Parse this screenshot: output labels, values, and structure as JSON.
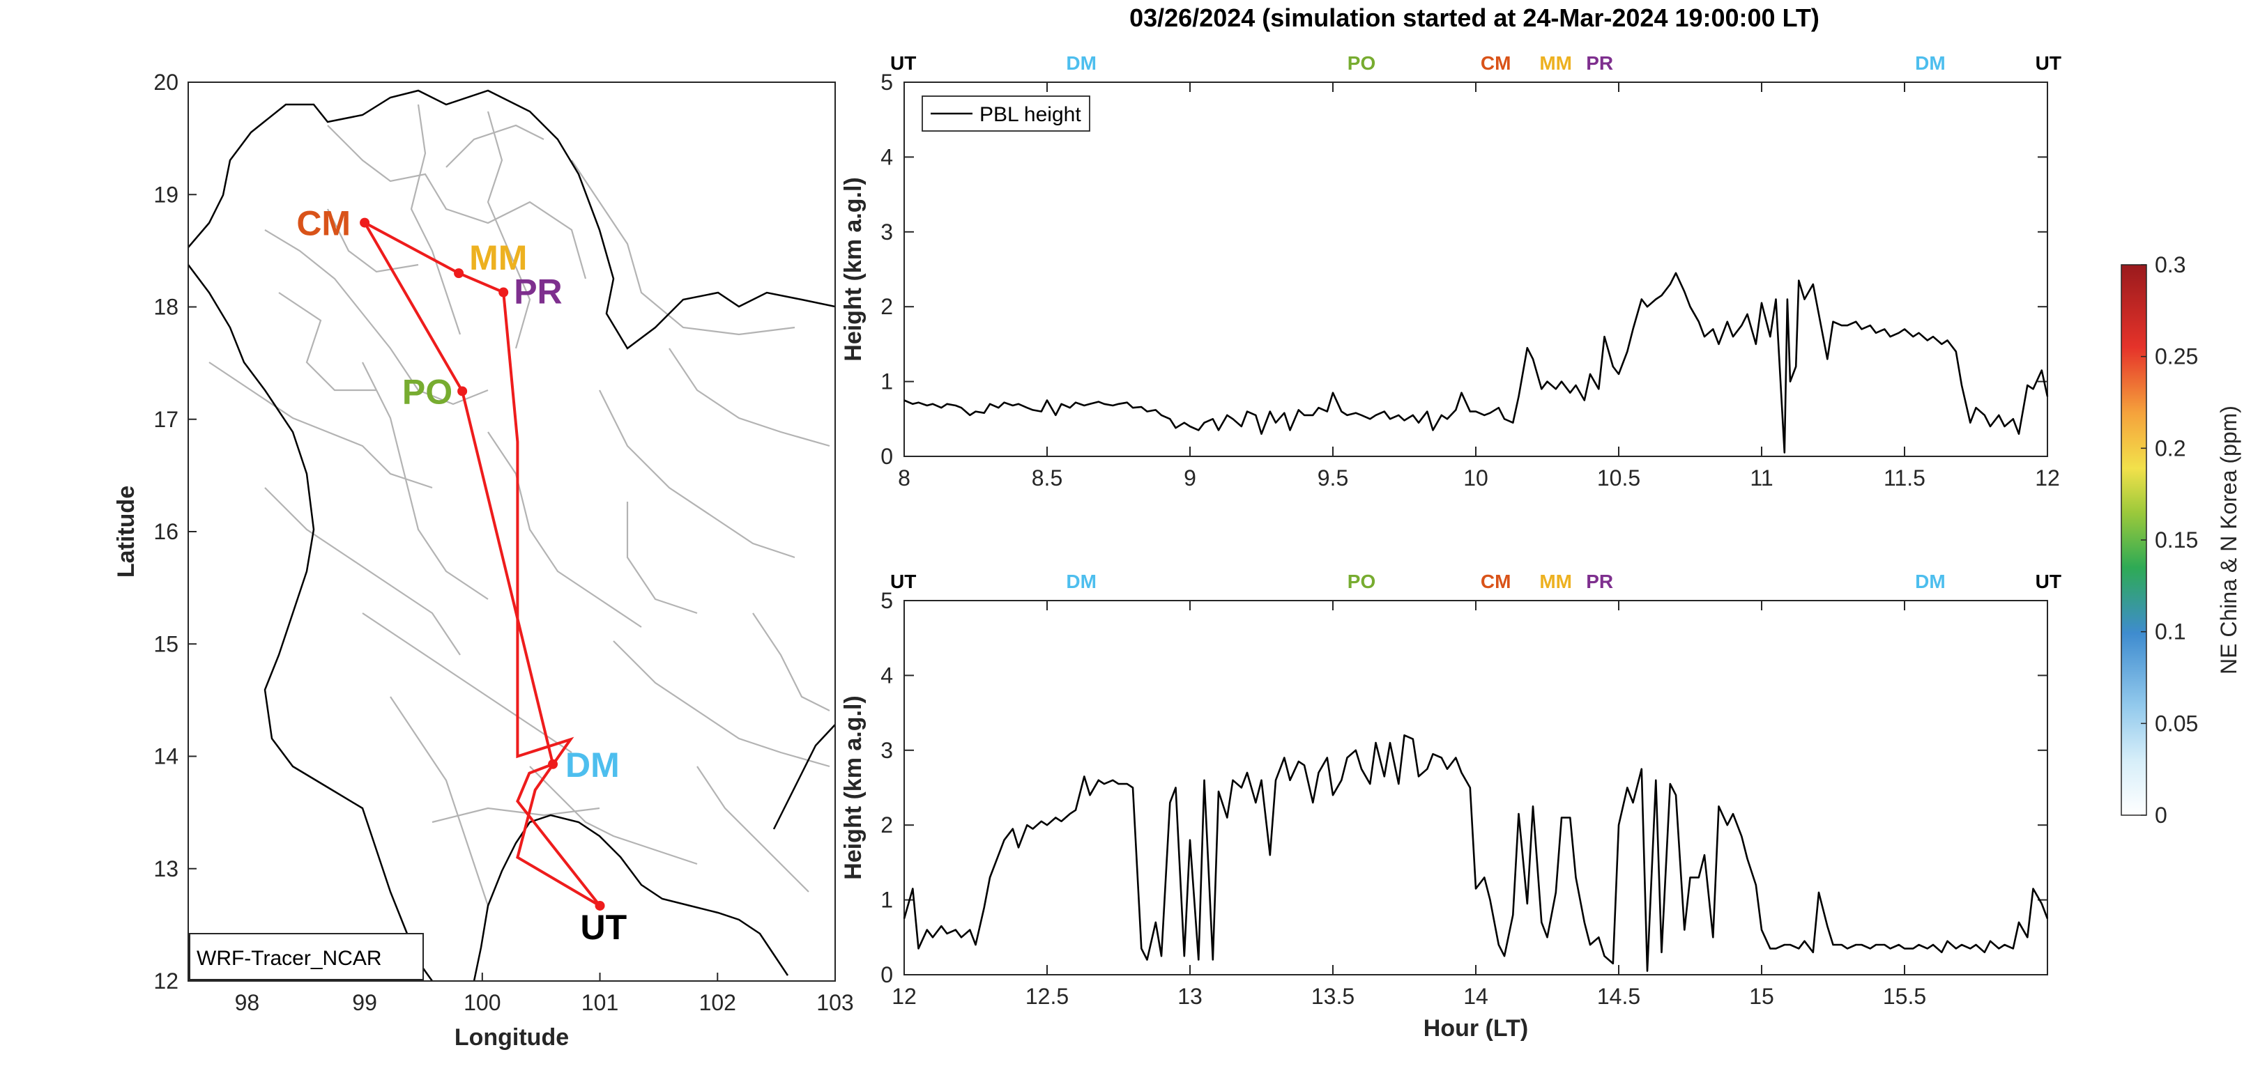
{
  "title": "03/26/2024 (simulation started at 24-Mar-2024 19:00:00 LT)",
  "colors": {
    "route": "#ee1c1c",
    "UT": "#000000",
    "DM": "#4dbeee",
    "PO": "#77ac30",
    "CM": "#d95319",
    "MM": "#edb120",
    "PR": "#7e2f8e"
  },
  "map": {
    "label": "WRF-Tracer_NCAR",
    "xlabel": "Longitude",
    "ylabel": "Latitude",
    "xlim": [
      97.5,
      103
    ],
    "ylim": [
      12,
      20
    ],
    "xticks": [
      98,
      99,
      100,
      101,
      102,
      103
    ],
    "yticks": [
      12,
      13,
      14,
      15,
      16,
      17,
      18,
      19,
      20
    ],
    "stations": [
      {
        "code": "CM",
        "lon": 99.0,
        "lat": 18.75
      },
      {
        "code": "MM",
        "lon": 99.8,
        "lat": 18.3
      },
      {
        "code": "PR",
        "lon": 100.18,
        "lat": 18.13
      },
      {
        "code": "PO",
        "lon": 99.83,
        "lat": 17.25
      },
      {
        "code": "DM",
        "lon": 100.6,
        "lat": 13.93
      },
      {
        "code": "UT",
        "lon": 101.0,
        "lat": 12.67
      }
    ]
  },
  "chart_data": [
    {
      "type": "line",
      "title": "03/26/2024 (simulation started at 24-Mar-2024 19:00:00 LT)",
      "xlabel": "",
      "ylabel": "Height (km a.g.l)",
      "xlim": [
        8,
        12
      ],
      "ylim": [
        0,
        5
      ],
      "xticks": [
        8,
        8.5,
        9,
        9.5,
        10,
        10.5,
        11,
        11.5,
        12
      ],
      "yticks": [
        0,
        1,
        2,
        3,
        4,
        5
      ],
      "legend": "top-left",
      "top_markers": [
        {
          "label": "UT",
          "x": 8.0
        },
        {
          "label": "DM",
          "x": 8.62
        },
        {
          "label": "PO",
          "x": 9.6
        },
        {
          "label": "CM",
          "x": 10.07
        },
        {
          "label": "MM",
          "x": 10.3
        },
        {
          "label": "PR",
          "x": 10.42
        },
        {
          "label": "DM",
          "x": 11.59
        },
        {
          "label": "UT",
          "x": 12.0
        }
      ],
      "series": [
        {
          "name": "PBL height",
          "x": [
            8.0,
            8.03,
            8.05,
            8.08,
            8.1,
            8.13,
            8.15,
            8.18,
            8.2,
            8.23,
            8.25,
            8.28,
            8.3,
            8.33,
            8.35,
            8.38,
            8.4,
            8.43,
            8.45,
            8.48,
            8.5,
            8.53,
            8.55,
            8.58,
            8.6,
            8.63,
            8.65,
            8.68,
            8.7,
            8.73,
            8.75,
            8.78,
            8.8,
            8.83,
            8.85,
            8.88,
            8.9,
            8.93,
            8.95,
            8.98,
            9.0,
            9.03,
            9.05,
            9.08,
            9.1,
            9.13,
            9.15,
            9.18,
            9.2,
            9.23,
            9.25,
            9.28,
            9.3,
            9.33,
            9.35,
            9.38,
            9.4,
            9.43,
            9.45,
            9.48,
            9.5,
            9.53,
            9.55,
            9.58,
            9.6,
            9.63,
            9.65,
            9.68,
            9.7,
            9.73,
            9.75,
            9.78,
            9.8,
            9.83,
            9.85,
            9.88,
            9.9,
            9.93,
            9.95,
            9.98,
            10.0,
            10.03,
            10.05,
            10.08,
            10.1,
            10.13,
            10.15,
            10.18,
            10.2,
            10.23,
            10.25,
            10.28,
            10.3,
            10.33,
            10.35,
            10.38,
            10.4,
            10.43,
            10.45,
            10.48,
            10.5,
            10.53,
            10.55,
            10.58,
            10.6,
            10.63,
            10.65,
            10.68,
            10.7,
            10.73,
            10.75,
            10.78,
            10.8,
            10.83,
            10.85,
            10.88,
            10.9,
            10.93,
            10.95,
            10.98,
            11.0,
            11.03,
            11.05,
            11.08,
            11.09,
            11.1,
            11.12,
            11.13,
            11.15,
            11.18,
            11.2,
            11.23,
            11.25,
            11.28,
            11.3,
            11.33,
            11.35,
            11.38,
            11.4,
            11.43,
            11.45,
            11.48,
            11.5,
            11.53,
            11.55,
            11.58,
            11.6,
            11.63,
            11.65,
            11.68,
            11.7,
            11.73,
            11.75,
            11.78,
            11.8,
            11.83,
            11.85,
            11.88,
            11.9,
            11.93,
            11.95,
            11.98,
            12.0
          ],
          "y": [
            0.75,
            0.7,
            0.72,
            0.68,
            0.7,
            0.65,
            0.7,
            0.68,
            0.65,
            0.55,
            0.6,
            0.58,
            0.7,
            0.65,
            0.72,
            0.68,
            0.7,
            0.65,
            0.62,
            0.6,
            0.75,
            0.55,
            0.7,
            0.65,
            0.72,
            0.68,
            0.7,
            0.73,
            0.7,
            0.68,
            0.7,
            0.72,
            0.65,
            0.66,
            0.6,
            0.62,
            0.55,
            0.5,
            0.38,
            0.45,
            0.4,
            0.35,
            0.45,
            0.5,
            0.35,
            0.55,
            0.5,
            0.4,
            0.6,
            0.55,
            0.3,
            0.6,
            0.45,
            0.58,
            0.35,
            0.62,
            0.55,
            0.55,
            0.65,
            0.6,
            0.85,
            0.6,
            0.55,
            0.58,
            0.55,
            0.5,
            0.55,
            0.6,
            0.5,
            0.55,
            0.48,
            0.55,
            0.45,
            0.6,
            0.35,
            0.55,
            0.5,
            0.62,
            0.85,
            0.6,
            0.6,
            0.55,
            0.58,
            0.65,
            0.5,
            0.45,
            0.8,
            1.45,
            1.3,
            0.9,
            1.0,
            0.9,
            1.0,
            0.85,
            0.95,
            0.75,
            1.1,
            0.9,
            1.6,
            1.2,
            1.1,
            1.4,
            1.7,
            2.1,
            2.0,
            2.1,
            2.15,
            2.3,
            2.45,
            2.2,
            2.0,
            1.8,
            1.6,
            1.7,
            1.5,
            1.8,
            1.6,
            1.75,
            1.9,
            1.5,
            2.05,
            1.6,
            2.1,
            0.05,
            2.1,
            1.0,
            1.2,
            2.35,
            2.1,
            2.3,
            1.9,
            1.3,
            1.8,
            1.75,
            1.75,
            1.8,
            1.7,
            1.75,
            1.65,
            1.7,
            1.6,
            1.65,
            1.7,
            1.6,
            1.65,
            1.55,
            1.6,
            1.5,
            1.55,
            1.4,
            0.95,
            0.45,
            0.65,
            0.55,
            0.4,
            0.55,
            0.4,
            0.5,
            0.3,
            0.95,
            0.9,
            1.15,
            0.8
          ]
        }
      ]
    },
    {
      "type": "line",
      "xlabel": "Hour (LT)",
      "ylabel": "Height (km a.g.l)",
      "xlim": [
        12,
        16
      ],
      "ylim": [
        0,
        5
      ],
      "xticks": [
        12,
        12.5,
        13,
        13.5,
        14,
        14.5,
        15,
        15.5
      ],
      "yticks": [
        0,
        1,
        2,
        3,
        4,
        5
      ],
      "top_markers": [
        {
          "label": "UT",
          "x": 12.0
        },
        {
          "label": "DM",
          "x": 12.62
        },
        {
          "label": "PO",
          "x": 13.6
        },
        {
          "label": "CM",
          "x": 14.07
        },
        {
          "label": "MM",
          "x": 14.3
        },
        {
          "label": "PR",
          "x": 14.42
        },
        {
          "label": "DM",
          "x": 15.59
        },
        {
          "label": "UT",
          "x": 16.0
        }
      ],
      "series": [
        {
          "name": "",
          "x": [
            12.0,
            12.03,
            12.05,
            12.08,
            12.1,
            12.13,
            12.15,
            12.18,
            12.2,
            12.23,
            12.25,
            12.28,
            12.3,
            12.33,
            12.35,
            12.38,
            12.4,
            12.43,
            12.45,
            12.48,
            12.5,
            12.53,
            12.55,
            12.58,
            12.6,
            12.63,
            12.65,
            12.68,
            12.7,
            12.73,
            12.75,
            12.78,
            12.8,
            12.83,
            12.85,
            12.88,
            12.9,
            12.93,
            12.95,
            12.98,
            13.0,
            13.03,
            13.05,
            13.08,
            13.1,
            13.13,
            13.15,
            13.18,
            13.2,
            13.23,
            13.25,
            13.28,
            13.3,
            13.33,
            13.35,
            13.38,
            13.4,
            13.43,
            13.45,
            13.48,
            13.5,
            13.53,
            13.55,
            13.58,
            13.6,
            13.63,
            13.65,
            13.68,
            13.7,
            13.73,
            13.75,
            13.78,
            13.8,
            13.83,
            13.85,
            13.88,
            13.9,
            13.93,
            13.95,
            13.98,
            14.0,
            14.03,
            14.05,
            14.08,
            14.1,
            14.13,
            14.15,
            14.18,
            14.2,
            14.23,
            14.25,
            14.28,
            14.3,
            14.33,
            14.35,
            14.38,
            14.4,
            14.43,
            14.45,
            14.48,
            14.5,
            14.53,
            14.55,
            14.58,
            14.6,
            14.63,
            14.65,
            14.68,
            14.7,
            14.73,
            14.75,
            14.78,
            14.8,
            14.83,
            14.85,
            14.88,
            14.9,
            14.93,
            14.95,
            14.98,
            15.0,
            15.03,
            15.05,
            15.08,
            15.1,
            15.13,
            15.15,
            15.18,
            15.2,
            15.23,
            15.25,
            15.28,
            15.3,
            15.33,
            15.35,
            15.38,
            15.4,
            15.43,
            15.45,
            15.48,
            15.5,
            15.53,
            15.55,
            15.58,
            15.6,
            15.63,
            15.65,
            15.68,
            15.7,
            15.73,
            15.75,
            15.78,
            15.8,
            15.83,
            15.85,
            15.88,
            15.9,
            15.93,
            15.95,
            15.98,
            16.0
          ],
          "y": [
            0.75,
            1.15,
            0.35,
            0.6,
            0.5,
            0.65,
            0.55,
            0.6,
            0.5,
            0.6,
            0.4,
            0.9,
            1.3,
            1.6,
            1.8,
            1.95,
            1.7,
            2.0,
            1.95,
            2.05,
            2.0,
            2.1,
            2.05,
            2.15,
            2.2,
            2.65,
            2.4,
            2.6,
            2.55,
            2.6,
            2.55,
            2.55,
            2.5,
            0.35,
            0.2,
            0.7,
            0.25,
            2.3,
            2.5,
            0.25,
            1.8,
            0.2,
            2.6,
            0.2,
            2.45,
            2.1,
            2.6,
            2.5,
            2.7,
            2.3,
            2.6,
            1.6,
            2.6,
            2.9,
            2.6,
            2.85,
            2.8,
            2.3,
            2.7,
            2.9,
            2.4,
            2.6,
            2.9,
            3.0,
            2.75,
            2.55,
            3.1,
            2.65,
            3.1,
            2.55,
            3.2,
            3.15,
            2.65,
            2.75,
            2.95,
            2.9,
            2.75,
            2.9,
            2.7,
            2.5,
            1.15,
            1.3,
            1.0,
            0.4,
            0.25,
            0.8,
            2.15,
            0.95,
            2.25,
            0.7,
            0.5,
            1.1,
            2.1,
            2.1,
            1.3,
            0.7,
            0.4,
            0.5,
            0.25,
            0.15,
            2.0,
            2.5,
            2.3,
            2.75,
            0.05,
            2.6,
            0.3,
            2.55,
            2.4,
            0.6,
            1.3,
            1.3,
            1.6,
            0.5,
            2.25,
            2.0,
            2.15,
            1.85,
            1.55,
            1.2,
            0.6,
            0.35,
            0.35,
            0.4,
            0.4,
            0.35,
            0.45,
            0.3,
            1.1,
            0.65,
            0.4,
            0.4,
            0.35,
            0.4,
            0.4,
            0.35,
            0.4,
            0.4,
            0.35,
            0.4,
            0.35,
            0.35,
            0.4,
            0.35,
            0.4,
            0.3,
            0.45,
            0.35,
            0.4,
            0.35,
            0.4,
            0.3,
            0.45,
            0.35,
            0.4,
            0.35,
            0.7,
            0.5,
            1.15,
            0.95,
            0.75
          ]
        }
      ]
    }
  ],
  "colorbar": {
    "label": "NE China & N Korea (ppm)",
    "ticks": [
      "0.3",
      "0.25",
      "0.2",
      "0.15",
      "0.1",
      "0.05",
      "0"
    ],
    "min": 0,
    "max": 0.3
  }
}
